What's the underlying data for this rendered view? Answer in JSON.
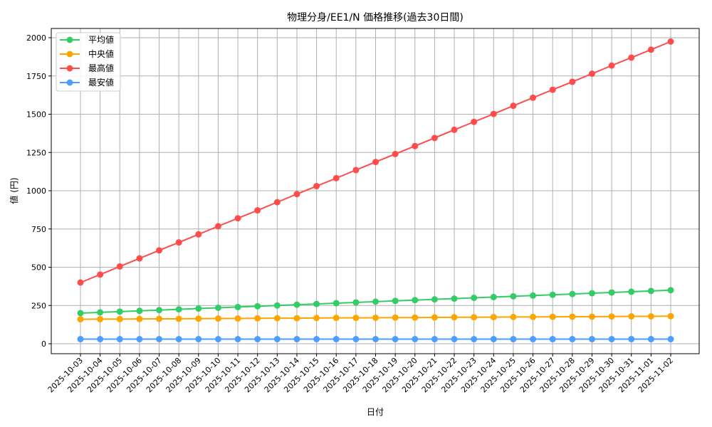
{
  "chart_data": {
    "type": "line",
    "title": "物理分身/EE1/N 価格推移(過去30日間)",
    "xlabel": "日付",
    "ylabel": "値 (円)",
    "ylim": [
      -60,
      2075
    ],
    "yticks": [
      0,
      250,
      500,
      750,
      1000,
      1250,
      1500,
      1750,
      2000
    ],
    "grid": true,
    "legend_position": "upper left",
    "categories": [
      "2025-10-03",
      "2025-10-04",
      "2025-10-05",
      "2025-10-06",
      "2025-10-07",
      "2025-10-08",
      "2025-10-09",
      "2025-10-10",
      "2025-10-11",
      "2025-10-12",
      "2025-10-13",
      "2025-10-14",
      "2025-10-15",
      "2025-10-16",
      "2025-10-17",
      "2025-10-18",
      "2025-10-19",
      "2025-10-20",
      "2025-10-21",
      "2025-10-22",
      "2025-10-23",
      "2025-10-24",
      "2025-10-25",
      "2025-10-26",
      "2025-10-27",
      "2025-10-28",
      "2025-10-29",
      "2025-10-30",
      "2025-10-31",
      "2025-11-01",
      "2025-11-02"
    ],
    "series": [
      {
        "name": "平均値",
        "color": "#33cc66",
        "values": [
          200,
          205,
          210,
          215,
          220,
          225,
          230,
          235,
          240,
          245,
          250,
          255,
          260,
          265,
          270,
          275,
          280,
          285,
          290,
          295,
          300,
          305,
          310,
          315,
          320,
          325,
          330,
          335,
          340,
          345,
          350
        ]
      },
      {
        "name": "中央値",
        "color": "#ffa500",
        "values": [
          160,
          161,
          161,
          162,
          163,
          163,
          164,
          165,
          165,
          166,
          167,
          167,
          168,
          169,
          169,
          170,
          171,
          171,
          172,
          173,
          173,
          174,
          175,
          175,
          176,
          177,
          177,
          178,
          179,
          179,
          180
        ]
      },
      {
        "name": "最高値",
        "color": "#ff4d4d",
        "values": [
          400,
          452,
          505,
          558,
          610,
          662,
          715,
          768,
          820,
          872,
          925,
          978,
          1030,
          1082,
          1135,
          1188,
          1240,
          1292,
          1345,
          1398,
          1450,
          1502,
          1555,
          1608,
          1660,
          1712,
          1765,
          1818,
          1870,
          1922,
          1975
        ]
      },
      {
        "name": "最安値",
        "color": "#4d9fff",
        "values": [
          30,
          30,
          30,
          30,
          30,
          30,
          30,
          30,
          30,
          30,
          30,
          30,
          30,
          30,
          30,
          30,
          30,
          30,
          30,
          30,
          30,
          30,
          30,
          30,
          30,
          30,
          30,
          30,
          30,
          30,
          30
        ]
      }
    ]
  }
}
